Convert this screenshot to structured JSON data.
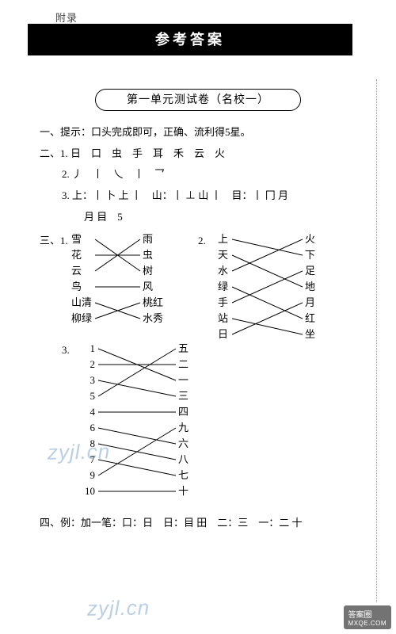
{
  "topLabel": "附录",
  "headerTitle": "参考答案",
  "sectionTitle": "第一单元测试卷（名校一）",
  "q1": "一、提示：口头完成即可，正确、流利得5星。",
  "q2_1": "二、1. 日　口　虫　手　耳　禾　云　火",
  "q2_2": "2. 丿　丨　乀　丨　乛",
  "q2_3a": "3. 上：丨 卜 上 丨　山：丨 ⊥ 山 丨　目：丨 冂 月",
  "q2_3b": "月 目　5",
  "q3label": "三、1.",
  "q3_1": {
    "left": [
      "雪",
      "花",
      "云",
      "鸟",
      "山清",
      "柳绿"
    ],
    "right": [
      "雨",
      "虫",
      "树",
      "风",
      "桃红",
      "水秀"
    ],
    "pairs": [
      [
        0,
        2
      ],
      [
        1,
        1
      ],
      [
        2,
        0
      ],
      [
        3,
        3
      ],
      [
        4,
        5
      ],
      [
        5,
        4
      ]
    ]
  },
  "q3_2label": "2.",
  "q3_2": {
    "left": [
      "上",
      "天",
      "水",
      "绿",
      "手",
      "站",
      "日"
    ],
    "right": [
      "火",
      "下",
      "足",
      "地",
      "月",
      "红",
      "坐"
    ],
    "pairs": [
      [
        0,
        1
      ],
      [
        1,
        3
      ],
      [
        2,
        0
      ],
      [
        3,
        5
      ],
      [
        4,
        2
      ],
      [
        5,
        6
      ],
      [
        6,
        4
      ]
    ]
  },
  "q3_3label": "3.",
  "q3_3": {
    "left": [
      "1",
      "2",
      "3",
      "5",
      "4",
      "6",
      "8",
      "7",
      "9",
      "10"
    ],
    "right": [
      "五",
      "二",
      "一",
      "三",
      "四",
      "九",
      "六",
      "八",
      "七",
      "十"
    ],
    "pairs": [
      [
        0,
        2
      ],
      [
        1,
        1
      ],
      [
        2,
        3
      ],
      [
        3,
        0
      ],
      [
        4,
        4
      ],
      [
        5,
        6
      ],
      [
        6,
        7
      ],
      [
        7,
        8
      ],
      [
        8,
        5
      ],
      [
        9,
        9
      ]
    ]
  },
  "q4": "四、例：加一笔：口：日　日：目 田　二：三　一：二 十",
  "watermark": "zyjl.cn",
  "logoTop": "答案圈",
  "logoSub": "MXQE.COM",
  "colors": {
    "line": "#000000"
  }
}
